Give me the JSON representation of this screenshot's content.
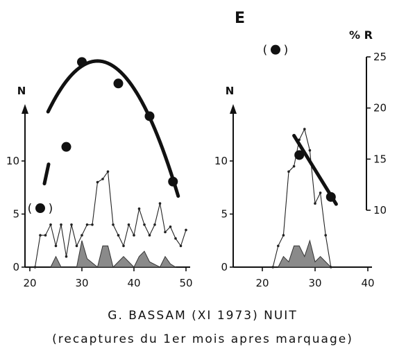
{
  "panel_letter": "E",
  "caption": {
    "line1": "G. BASSAM   (XI 1973)  NUIT",
    "line2": "(recaptures du 1er mois apres marquage)"
  },
  "chart_data": [
    {
      "type": "line",
      "panel": "left",
      "xlabel": "",
      "ylabel": "N",
      "xlim": [
        20,
        50
      ],
      "ylim": [
        0,
        15
      ],
      "xticks": [
        20,
        30,
        40,
        50
      ],
      "yticks": [
        0,
        5,
        10
      ],
      "series": [
        {
          "style": "thin-line-dots",
          "x": [
            21,
            22,
            23,
            24,
            25,
            26,
            27,
            28,
            29,
            30,
            31,
            32,
            33,
            34,
            35,
            36,
            37,
            38,
            39,
            40,
            41,
            42,
            43,
            44,
            45,
            46,
            47,
            48,
            49,
            50
          ],
          "y": [
            0,
            3,
            3,
            4,
            2,
            4,
            1,
            4,
            2,
            3,
            4,
            4,
            8,
            8.3,
            9,
            4,
            3,
            2,
            4,
            3,
            5.5,
            4,
            3,
            4,
            6,
            3.3,
            3.8,
            2.7,
            2,
            3.5
          ]
        },
        {
          "style": "shaded-histogram",
          "x": [
            24,
            25,
            26,
            29,
            30,
            31,
            33,
            34,
            35,
            36,
            37,
            38,
            40,
            41,
            42,
            43,
            45,
            46,
            47,
            48
          ],
          "y": [
            0,
            1,
            0,
            0,
            2.5,
            0.8,
            0,
            2,
            2,
            0,
            0.5,
            1,
            0,
            1,
            1.5,
            0.5,
            0,
            1,
            0.3,
            0
          ]
        }
      ],
      "right_axis": {
        "label": "% R",
        "ylim": [
          10,
          25
        ],
        "ticks": [
          10,
          15,
          20,
          25
        ]
      },
      "percent_R_points": {
        "x": [
          22,
          27,
          30,
          37,
          43,
          47.5
        ],
        "y": [
          10.2,
          16.2,
          24.5,
          22.4,
          19.2,
          12.8
        ],
        "bracketed": [
          true,
          false,
          false,
          false,
          false,
          false
        ]
      },
      "fitted_curve": "parabola over percent_R_points"
    },
    {
      "type": "line",
      "panel": "right",
      "xlabel": "",
      "ylabel": "N",
      "xlim": [
        15,
        40
      ],
      "ylim": [
        0,
        15
      ],
      "xticks": [
        20,
        30,
        40
      ],
      "yticks": [
        0,
        5,
        10
      ],
      "series": [
        {
          "style": "thin-line-dots",
          "x": [
            22,
            23,
            24,
            25,
            26,
            27,
            28,
            29,
            30,
            31,
            32,
            33
          ],
          "y": [
            0,
            2,
            3,
            9,
            9.5,
            12,
            13,
            11,
            6,
            7,
            3,
            0
          ]
        },
        {
          "style": "shaded-histogram",
          "x": [
            23,
            24,
            25,
            26,
            27,
            28,
            29,
            30,
            31,
            32,
            33
          ],
          "y": [
            0,
            1,
            0.5,
            2,
            2,
            1,
            2.5,
            0.5,
            1,
            0.5,
            0
          ]
        }
      ],
      "right_axis": {
        "label": "% R",
        "ylim": [
          10,
          25
        ],
        "ticks": [
          10,
          15,
          20,
          25
        ]
      },
      "percent_R_points": {
        "x": [
          22.5,
          27,
          33
        ],
        "y": [
          25.7,
          15.4,
          11.3
        ],
        "bracketed": [
          true,
          false,
          false
        ]
      },
      "fitted_line": "straight line descending from x=26 to x=34"
    }
  ]
}
